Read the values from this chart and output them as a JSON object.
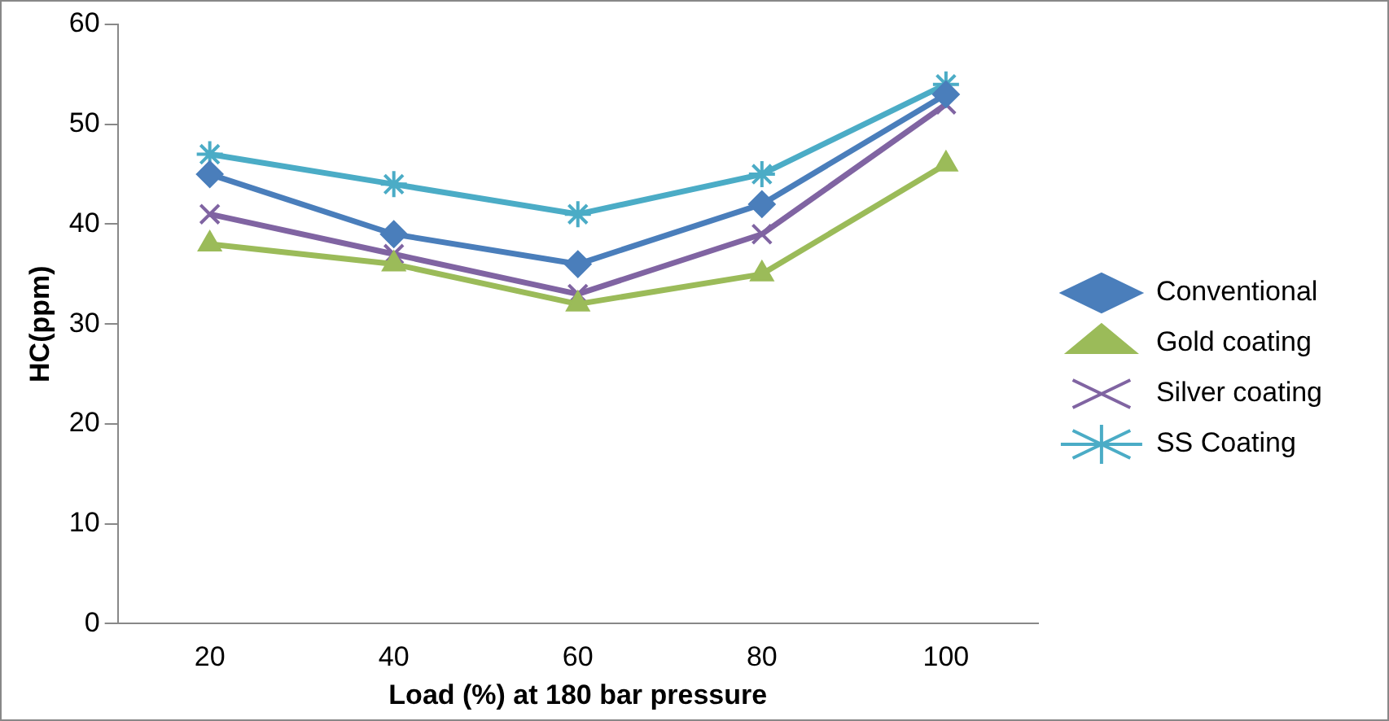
{
  "chart_data": {
    "type": "line",
    "xlabel": "Load (%) at 180 bar pressure",
    "ylabel": "HC(ppm)",
    "categories": [
      "20",
      "40",
      "60",
      "80",
      "100"
    ],
    "series": [
      {
        "name": "Conventional",
        "color": "#4a7ebb",
        "marker": "diamond",
        "values": [
          45,
          39,
          36,
          42,
          53
        ]
      },
      {
        "name": "Gold coating",
        "color": "#9bbb59",
        "marker": "triangle",
        "values": [
          38,
          36,
          32,
          35,
          46
        ]
      },
      {
        "name": "Silver coating",
        "color": "#8064a2",
        "marker": "cross",
        "values": [
          41,
          37,
          33,
          39,
          52
        ]
      },
      {
        "name": "SS Coating",
        "color": "#4bacc6",
        "marker": "cross",
        "values": [
          47,
          44,
          41,
          45,
          54
        ]
      }
    ],
    "ylim": [
      0,
      60
    ],
    "yticks": [
      0,
      10,
      20,
      30,
      40,
      50,
      60
    ],
    "grid": false,
    "legend": "right",
    "line_style": "solid"
  }
}
